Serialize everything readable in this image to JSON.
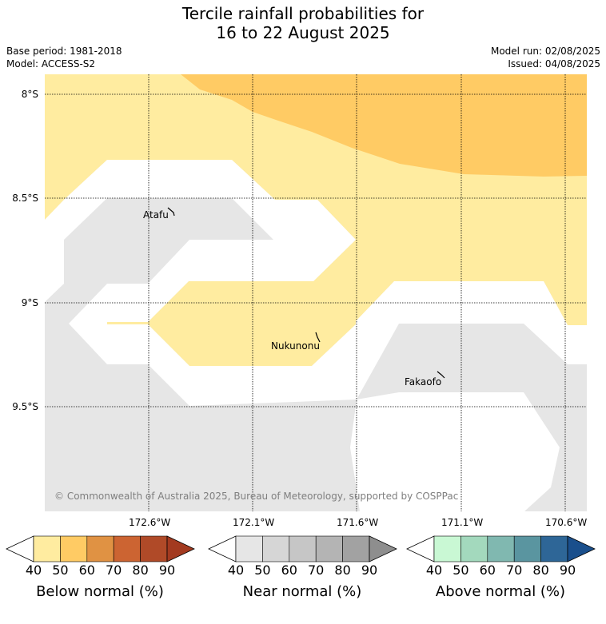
{
  "title": {
    "line1": "Tercile rainfall probabilities for",
    "line2": "16 to 22 August 2025"
  },
  "meta": {
    "base_period": "Base period: 1981-2018",
    "model": "Model: ACCESS-S2",
    "model_run": "Model run: 02/08/2025",
    "issued": "Issued: 04/08/2025"
  },
  "map": {
    "lat_ticks": [
      "8°S",
      "8.5°S",
      "9°S",
      "9.5°S"
    ],
    "lon_ticks": [
      "172.6°W",
      "172.1°W",
      "171.6°W",
      "171.1°W",
      "170.6°W"
    ],
    "places": [
      "Atafu",
      "Nukunonu",
      "Fakaofo"
    ],
    "copyright": "© Commonwealth of Australia 2025, Bureau of Meteorology, supported by COSPPac",
    "colors": {
      "near_normal_40": "#e6e6e6",
      "below_normal_40": "#ffeca0",
      "below_normal_50": "#ffcb64"
    }
  },
  "legend": [
    {
      "label": "Below normal (%)",
      "ticks": [
        "40",
        "50",
        "60",
        "70",
        "80",
        "90"
      ],
      "colors": [
        "#ffffff",
        "#ffeca0",
        "#ffcb64",
        "#e09243",
        "#cc6432",
        "#b04a28",
        "#a33a20"
      ]
    },
    {
      "label": "Near normal (%)",
      "ticks": [
        "40",
        "50",
        "60",
        "70",
        "80",
        "90"
      ],
      "colors": [
        "#ffffff",
        "#e6e6e6",
        "#d6d6d6",
        "#c6c6c6",
        "#b4b4b4",
        "#a2a2a2",
        "#8e8e8e"
      ]
    },
    {
      "label": "Above normal (%)",
      "ticks": [
        "40",
        "50",
        "60",
        "70",
        "80",
        "90"
      ],
      "colors": [
        "#ffffff",
        "#c9f8d4",
        "#a3d9bd",
        "#80b8b0",
        "#5a95a0",
        "#2e6697",
        "#1a4f8c"
      ]
    }
  ]
}
